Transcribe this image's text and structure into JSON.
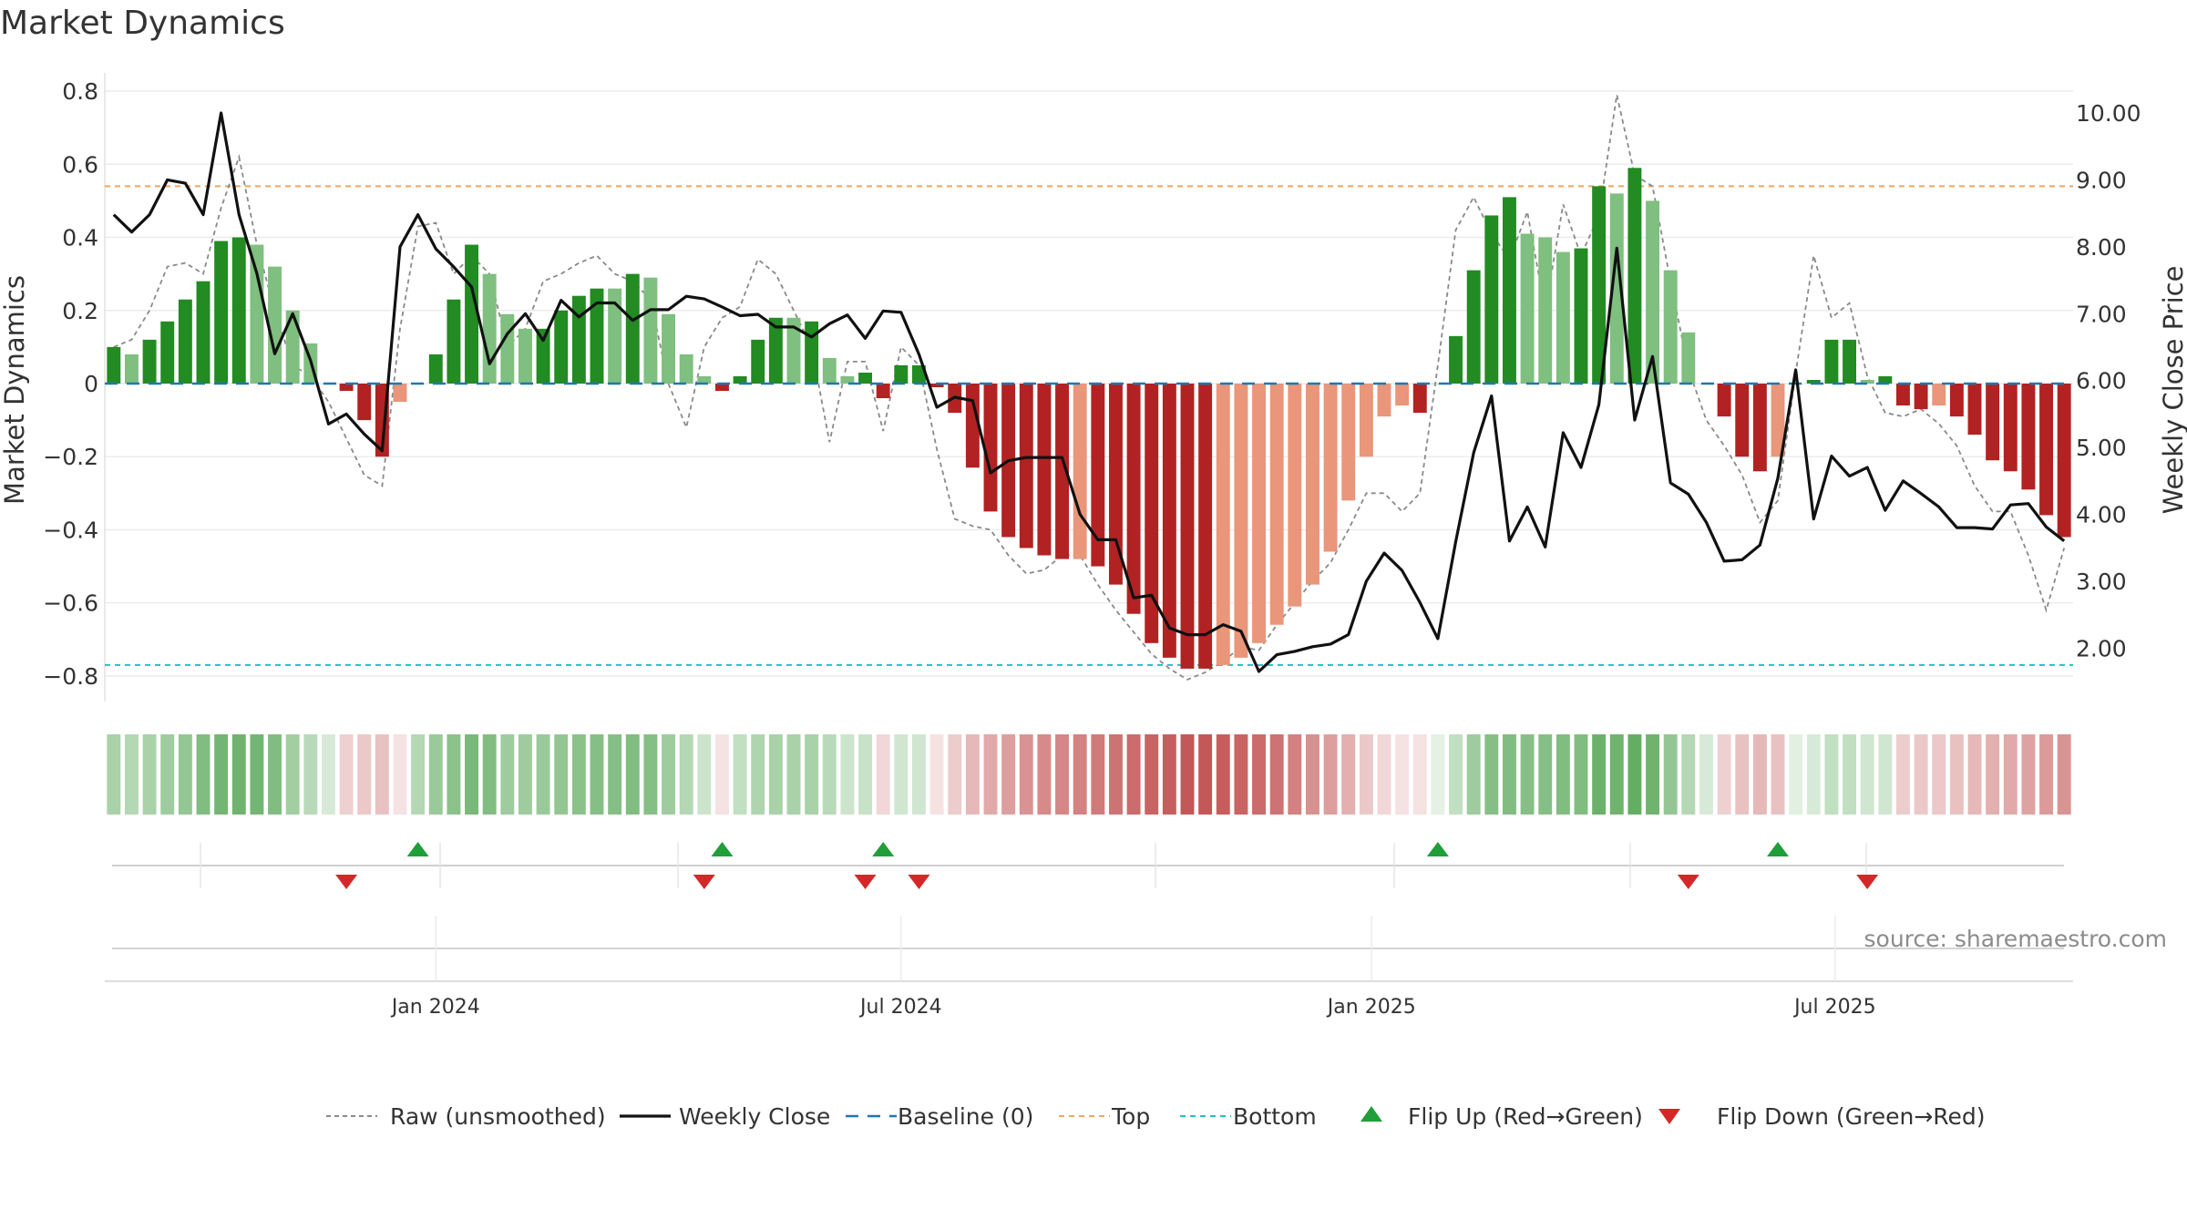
{
  "chart_data": {
    "type": "bar",
    "title": "Market Dynamics",
    "ylabel": "Market Dynamics",
    "ylabel_right": "Weekly Close Price",
    "source": "source: sharemaestro.com",
    "ylim": [
      -0.87,
      0.85
    ],
    "ylim_right": [
      1.2,
      10.6
    ],
    "left_ticks": [
      0.8,
      0.6,
      0.4,
      0.2,
      0,
      -0.2,
      -0.4,
      -0.6,
      -0.8
    ],
    "left_tick_labels": [
      "0.8",
      "0.6",
      "0.4",
      "0.2",
      "0",
      "−0.2",
      "−0.4",
      "−0.6",
      "−0.8"
    ],
    "right_ticks": [
      10,
      9,
      8,
      7,
      6,
      5,
      4,
      3,
      2
    ],
    "right_tick_labels": [
      "10.00",
      "9.00",
      "8.00",
      "7.00",
      "6.00",
      "5.00",
      "4.00",
      "3.00",
      "2.00"
    ],
    "x_ticks": [
      {
        "week": 18.5,
        "label": "Jan 2024"
      },
      {
        "week": 44.5,
        "label": "Jul 2024"
      },
      {
        "week": 70.8,
        "label": "Jan 2025"
      },
      {
        "week": 96.7,
        "label": "Jul 2025"
      }
    ],
    "top_line": 0.54,
    "bottom_line": -0.77,
    "baseline": 0,
    "grid": true,
    "legend_position": "bottom",
    "legend": [
      {
        "key": "raw",
        "label": "Raw (unsmoothed)"
      },
      {
        "key": "close",
        "label": "Weekly Close"
      },
      {
        "key": "baseline",
        "label": "Baseline (0)"
      },
      {
        "key": "top",
        "label": "Top"
      },
      {
        "key": "bottom",
        "label": "Bottom"
      },
      {
        "key": "flip_up",
        "label": "Flip Up (Red→Green)"
      },
      {
        "key": "flip_down",
        "label": "Flip Down (Green→Red)"
      }
    ],
    "colors": {
      "strong_green": "#228b22",
      "light_green": "#7fbf7f",
      "strong_red": "#b22222",
      "light_red": "#e9967a",
      "raw": "#8a8a8a",
      "close": "#111111",
      "baseline": "#1f77b4",
      "top": "#f4a460",
      "bottom": "#20c0c8",
      "flip_up": "#1f9e3a",
      "flip_down": "#d62728"
    },
    "values": [
      0.1,
      0.08,
      0.12,
      0.17,
      0.23,
      0.28,
      0.39,
      0.4,
      0.38,
      0.32,
      0.2,
      0.11,
      0.0,
      -0.02,
      -0.1,
      -0.2,
      -0.05,
      0.0,
      0.08,
      0.23,
      0.38,
      0.3,
      0.19,
      0.15,
      0.15,
      0.2,
      0.24,
      0.26,
      0.26,
      0.3,
      0.29,
      0.19,
      0.08,
      0.02,
      -0.02,
      0.02,
      0.12,
      0.18,
      0.18,
      0.17,
      0.07,
      0.02,
      0.03,
      -0.04,
      0.05,
      0.05,
      -0.01,
      -0.08,
      -0.23,
      -0.35,
      -0.42,
      -0.45,
      -0.47,
      -0.48,
      -0.48,
      -0.5,
      -0.55,
      -0.63,
      -0.71,
      -0.75,
      -0.78,
      -0.78,
      -0.77,
      -0.75,
      -0.71,
      -0.66,
      -0.61,
      -0.55,
      -0.46,
      -0.32,
      -0.2,
      -0.09,
      -0.06,
      -0.08,
      0.0,
      0.13,
      0.31,
      0.46,
      0.51,
      0.41,
      0.4,
      0.36,
      0.37,
      0.54,
      0.52,
      0.59,
      0.5,
      0.31,
      0.14,
      0.0,
      -0.09,
      -0.2,
      -0.24,
      -0.2,
      0.0,
      0.01,
      0.12,
      0.12,
      0.01,
      0.02,
      -0.06,
      -0.07,
      -0.06,
      -0.09,
      -0.14,
      -0.21,
      -0.24,
      -0.29,
      -0.36,
      -0.42
    ],
    "bar_kind": [
      "G",
      "g",
      "G",
      "G",
      "G",
      "G",
      "G",
      "G",
      "g",
      "g",
      "g",
      "g",
      "g",
      "R",
      "R",
      "R",
      "r",
      "g",
      "G",
      "G",
      "G",
      "g",
      "g",
      "g",
      "G",
      "G",
      "G",
      "G",
      "g",
      "G",
      "g",
      "g",
      "g",
      "g",
      "R",
      "G",
      "G",
      "G",
      "g",
      "G",
      "g",
      "g",
      "G",
      "R",
      "G",
      "G",
      "R",
      "R",
      "R",
      "R",
      "R",
      "R",
      "R",
      "R",
      "r",
      "R",
      "R",
      "R",
      "R",
      "R",
      "R",
      "R",
      "r",
      "r",
      "r",
      "r",
      "r",
      "r",
      "r",
      "r",
      "r",
      "r",
      "r",
      "R",
      "g",
      "G",
      "G",
      "G",
      "G",
      "g",
      "g",
      "g",
      "G",
      "G",
      "g",
      "G",
      "g",
      "g",
      "g",
      "g",
      "R",
      "R",
      "R",
      "r",
      "g",
      "G",
      "G",
      "G",
      "g",
      "G",
      "R",
      "R",
      "r",
      "R",
      "R",
      "R",
      "R",
      "R",
      "R",
      "R"
    ],
    "raw": [
      0.1,
      0.12,
      0.2,
      0.32,
      0.33,
      0.3,
      0.48,
      0.62,
      0.38,
      0.2,
      0.05,
      0.02,
      -0.05,
      -0.15,
      -0.25,
      -0.28,
      0.15,
      0.43,
      0.44,
      0.3,
      0.35,
      0.3,
      0.1,
      0.15,
      0.28,
      0.3,
      0.33,
      0.35,
      0.3,
      0.28,
      0.23,
      0.0,
      -0.12,
      0.1,
      0.18,
      0.21,
      0.34,
      0.3,
      0.2,
      0.1,
      -0.16,
      0.06,
      0.06,
      -0.13,
      0.1,
      0.05,
      -0.18,
      -0.37,
      -0.39,
      -0.4,
      -0.47,
      -0.52,
      -0.51,
      -0.47,
      -0.47,
      -0.55,
      -0.62,
      -0.68,
      -0.74,
      -0.78,
      -0.81,
      -0.79,
      -0.76,
      -0.72,
      -0.73,
      -0.66,
      -0.6,
      -0.54,
      -0.49,
      -0.4,
      -0.3,
      -0.3,
      -0.35,
      -0.3,
      0.05,
      0.42,
      0.51,
      0.41,
      0.34,
      0.47,
      0.2,
      0.49,
      0.35,
      0.46,
      0.79,
      0.57,
      0.54,
      0.28,
      0.04,
      -0.1,
      -0.17,
      -0.25,
      -0.38,
      -0.32,
      0.03,
      0.35,
      0.18,
      0.22,
      0.02,
      -0.08,
      -0.09,
      -0.07,
      -0.11,
      -0.17,
      -0.28,
      -0.35,
      -0.35,
      -0.47,
      -0.62,
      -0.45
    ],
    "close": [
      8.48,
      8.22,
      8.48,
      9.0,
      8.95,
      8.48,
      10.0,
      8.48,
      7.6,
      6.4,
      7.0,
      6.3,
      5.35,
      5.5,
      5.2,
      4.95,
      8.0,
      8.48,
      7.97,
      7.7,
      7.4,
      6.25,
      6.7,
      7.0,
      6.6,
      7.2,
      6.95,
      7.16,
      7.16,
      6.9,
      7.06,
      7.06,
      7.26,
      7.22,
      7.1,
      6.97,
      6.99,
      6.8,
      6.8,
      6.65,
      6.85,
      6.98,
      6.63,
      7.04,
      7.02,
      6.39,
      5.6,
      5.75,
      5.7,
      4.62,
      4.8,
      4.85,
      4.85,
      4.85,
      4.0,
      3.62,
      3.62,
      2.75,
      2.79,
      2.3,
      2.2,
      2.2,
      2.35,
      2.25,
      1.65,
      1.9,
      1.95,
      2.02,
      2.06,
      2.2,
      3.0,
      3.42,
      3.16,
      2.68,
      2.14,
      3.59,
      4.92,
      5.77,
      3.6,
      4.11,
      3.51,
      5.22,
      4.7,
      5.64,
      7.98,
      5.41,
      6.36,
      4.47,
      4.3,
      3.88,
      3.3,
      3.32,
      3.54,
      4.54,
      6.16,
      3.93,
      4.87,
      4.57,
      4.7,
      4.06,
      4.5,
      4.31,
      4.11,
      3.8,
      3.8,
      3.78,
      4.14,
      4.16,
      3.81,
      3.6
    ],
    "heat": [
      0.55,
      0.5,
      0.55,
      0.6,
      0.65,
      0.72,
      0.78,
      0.8,
      0.78,
      0.72,
      0.58,
      0.48,
      0.35,
      0.38,
      0.42,
      0.45,
      0.3,
      0.5,
      0.62,
      0.68,
      0.75,
      0.72,
      0.6,
      0.6,
      0.62,
      0.65,
      0.68,
      0.7,
      0.7,
      0.72,
      0.7,
      0.6,
      0.5,
      0.4,
      0.3,
      0.45,
      0.52,
      0.55,
      0.55,
      0.55,
      0.48,
      0.4,
      0.42,
      0.35,
      0.38,
      0.38,
      0.3,
      0.4,
      0.48,
      0.55,
      0.6,
      0.65,
      0.68,
      0.7,
      0.72,
      0.75,
      0.78,
      0.82,
      0.85,
      0.88,
      0.9,
      0.9,
      0.88,
      0.85,
      0.82,
      0.78,
      0.72,
      0.66,
      0.6,
      0.52,
      0.42,
      0.35,
      0.3,
      0.3,
      0.25,
      0.45,
      0.6,
      0.7,
      0.72,
      0.7,
      0.7,
      0.72,
      0.72,
      0.82,
      0.8,
      0.85,
      0.8,
      0.65,
      0.5,
      0.35,
      0.38,
      0.45,
      0.48,
      0.45,
      0.3,
      0.35,
      0.45,
      0.45,
      0.38,
      0.38,
      0.4,
      0.42,
      0.42,
      0.45,
      0.48,
      0.52,
      0.55,
      0.58,
      0.62,
      0.65
    ],
    "flips_up": [
      17.5,
      34.5,
      43.5,
      74.5,
      93.5
    ],
    "flips_down": [
      13.5,
      33.5,
      42.5,
      45.5,
      88.5,
      98.5
    ]
  }
}
